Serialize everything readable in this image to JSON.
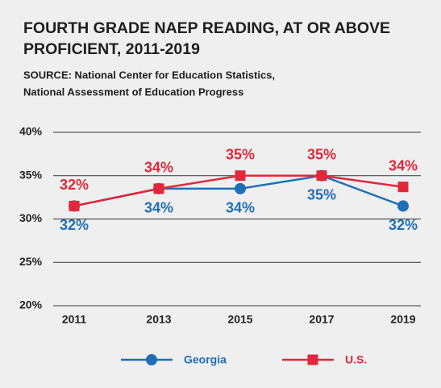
{
  "chart_data": {
    "type": "line",
    "title": [
      "FOURTH GRADE NAEP READING, AT OR ABOVE",
      "PROFICIENT, 2011-2019"
    ],
    "subtitle": [
      "SOURCE: National Center for Education Statistics,",
      "National Assessment of Education Progress"
    ],
    "categories": [
      "2011",
      "2013",
      "2015",
      "2017",
      "2019"
    ],
    "series": [
      {
        "name": "Georgia",
        "color": "#1f6fb8",
        "marker": "circle",
        "label_position": "below",
        "values": [
          31.5,
          33.5,
          33.5,
          35,
          31.5
        ],
        "value_labels": [
          "32%",
          "34%",
          "34%",
          "35%",
          "32%"
        ]
      },
      {
        "name": "U.S.",
        "color": "#e0283a",
        "marker": "square",
        "label_position": "above",
        "values": [
          31.5,
          33.5,
          35,
          35,
          33.7
        ],
        "value_labels": [
          "32%",
          "34%",
          "35%",
          "35%",
          "34%"
        ]
      }
    ],
    "ylim": [
      20,
      40
    ],
    "yticks": [
      {
        "value": 20,
        "label": "20%"
      },
      {
        "value": 25,
        "label": "25%"
      },
      {
        "value": 30,
        "label": "30%"
      },
      {
        "value": 35,
        "label": "35%"
      },
      {
        "value": 40,
        "label": "40%"
      }
    ],
    "grid": true
  }
}
